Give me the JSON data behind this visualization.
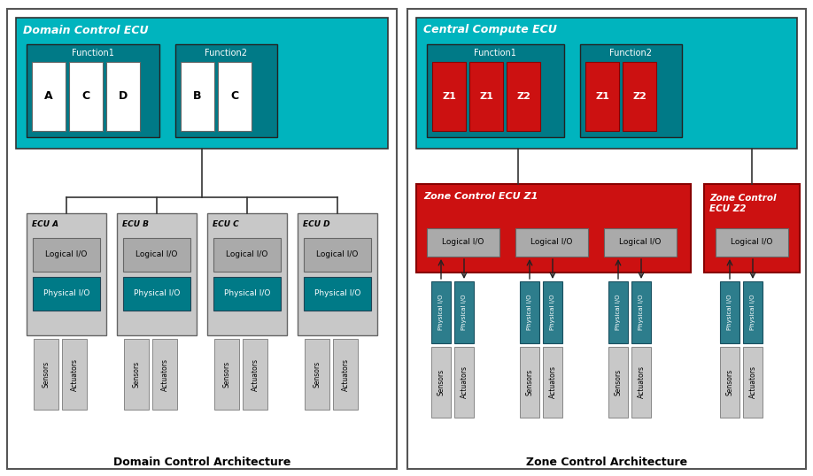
{
  "fig_width": 9.18,
  "fig_height": 5.38,
  "bg_color": "#ffffff",
  "teal_light": "#00b4be",
  "teal_dark": "#007a87",
  "gray_ecu": "#c8c8c8",
  "gray_logical": "#aaaaaa",
  "red_zone": "#cc1111",
  "physical_io_color": "#2d7d8c",
  "sensor_actuator_color": "#c8c8c8",
  "left_title": "Domain Control Architecture",
  "right_title": "Zone Control Architecture",
  "left_ecu_label": "Domain Control ECU",
  "right_ecu_label": "Central Compute ECU",
  "zone_z1_label": "Zone Control ECU Z1",
  "zone_z2_label": "Zone Control\nECU Z2",
  "func1_label": "Function1",
  "func2_label": "Function2",
  "left_func1_items": [
    "A",
    "C",
    "D"
  ],
  "left_func2_items": [
    "B",
    "C"
  ],
  "right_func1_items": [
    "Z1",
    "Z1",
    "Z2"
  ],
  "right_func2_items": [
    "Z1",
    "Z2"
  ],
  "ecu_labels": [
    "ECU A",
    "ECU B",
    "ECU C",
    "ECU D"
  ],
  "logical_io_label": "Logical I/O",
  "physical_io_label": "Physical I/O",
  "sensors_label": "Sensors",
  "actuators_label": "Actuators"
}
